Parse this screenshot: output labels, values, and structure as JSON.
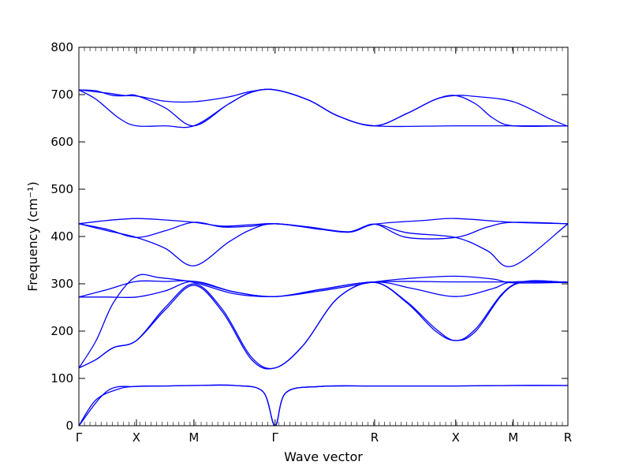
{
  "chart_data": {
    "type": "line",
    "title": "",
    "xlabel": "Wave vector",
    "ylabel": "Frequency (cm⁻¹)",
    "ylim": [
      0,
      800
    ],
    "yticks": [
      0,
      100,
      200,
      300,
      400,
      500,
      600,
      700,
      800
    ],
    "xlim": [
      0,
      8.5
    ],
    "xticks": [
      {
        "pos": 0,
        "label": "Γ"
      },
      {
        "pos": 1,
        "label": "X"
      },
      {
        "pos": 2,
        "label": "M"
      },
      {
        "pos": 3.41,
        "label": "Γ"
      },
      {
        "pos": 5.14,
        "label": "R"
      },
      {
        "pos": 6.55,
        "label": "X"
      },
      {
        "pos": 7.55,
        "label": "M"
      },
      {
        "pos": 8.5,
        "label": "R"
      }
    ],
    "line_color": "#0000ff",
    "grid": false,
    "series": [
      {
        "x": [
          0,
          0.5,
          1,
          1.5,
          2,
          2.7,
          3.2,
          3.41,
          3.6,
          4.2,
          5.14,
          6.55,
          7.55,
          8.5
        ],
        "y": [
          0,
          74,
          83,
          84,
          85,
          85,
          72,
          0,
          70,
          83,
          84,
          84,
          85,
          85
        ]
      },
      {
        "x": [
          0,
          0.3,
          0.7,
          1,
          1.5,
          2,
          2.7,
          3.2,
          3.41,
          3.6,
          4.2,
          5.14,
          6.55,
          7.55,
          8.5
        ],
        "y": [
          0,
          55,
          78,
          83,
          84,
          85,
          85,
          72,
          0,
          70,
          83,
          84,
          84,
          85,
          85
        ]
      },
      {
        "x": [
          0,
          0.3,
          0.6,
          1,
          1.5,
          2,
          2.5,
          3,
          3.41,
          3.9,
          4.5,
          5.14,
          5.7,
          6.2,
          6.55,
          6.9,
          7.55,
          8.5
        ],
        "y": [
          122,
          140,
          165,
          180,
          245,
          297,
          240,
          140,
          122,
          170,
          270,
          303,
          260,
          200,
          180,
          200,
          297,
          303
        ]
      },
      {
        "x": [
          0,
          0.3,
          0.6,
          1,
          1.5,
          2,
          2.5,
          3,
          3.41,
          3.9,
          4.5,
          5.14,
          5.7,
          6.2,
          6.55,
          6.9,
          7.55,
          8.5
        ],
        "y": [
          122,
          140,
          165,
          180,
          250,
          300,
          245,
          145,
          122,
          170,
          270,
          303,
          262,
          205,
          180,
          205,
          298,
          303
        ]
      },
      {
        "x": [
          0,
          0.3,
          0.6,
          1,
          1.4,
          2,
          2.7,
          3.41,
          4.2,
          5.14,
          5.8,
          6.55,
          7.2,
          7.55,
          8.5
        ],
        "y": [
          122,
          180,
          260,
          316,
          313,
          303,
          279,
          273,
          285,
          304,
          312,
          316,
          310,
          302,
          303
        ]
      },
      {
        "x": [
          0,
          0.5,
          1,
          1.5,
          2,
          2.7,
          3.41,
          4.2,
          5.14,
          6.55,
          7.55,
          8.5
        ],
        "y": [
          272,
          272,
          272,
          285,
          305,
          283,
          273,
          288,
          304,
          304,
          304,
          304
        ]
      },
      {
        "x": [
          0,
          0.5,
          1,
          1.5,
          2,
          2.7,
          3.41,
          4.2,
          5.14,
          5.8,
          6.55,
          7.2,
          7.55,
          8.5
        ],
        "y": [
          272,
          288,
          305,
          305,
          305,
          283,
          273,
          288,
          304,
          290,
          273,
          290,
          304,
          304
        ]
      },
      {
        "x": [
          0,
          0.5,
          1,
          1.5,
          2,
          2.6,
          3,
          3.41,
          4.2,
          4.7,
          5.14,
          5.7,
          6.55,
          7.1,
          7.55,
          8.5
        ],
        "y": [
          427,
          412,
          398,
          375,
          338,
          388,
          415,
          427,
          415,
          410,
          426,
          408,
          398,
          370,
          338,
          427
        ]
      },
      {
        "x": [
          0,
          0.5,
          1,
          1.5,
          2,
          2.5,
          3,
          3.41,
          4,
          4.7,
          5.14,
          5.7,
          6.55,
          7.1,
          7.55,
          8.5
        ],
        "y": [
          427,
          415,
          398,
          412,
          430,
          420,
          422,
          427,
          420,
          409,
          426,
          398,
          398,
          420,
          430,
          427
        ]
      },
      {
        "x": [
          0,
          0.5,
          1,
          1.5,
          2,
          2.5,
          3,
          3.41,
          4,
          4.7,
          5.14,
          6,
          6.55,
          7.55,
          8.5
        ],
        "y": [
          427,
          434,
          438,
          435,
          430,
          422,
          425,
          427,
          420,
          410,
          426,
          434,
          438,
          430,
          427
        ]
      },
      {
        "x": [
          0,
          0.3,
          0.6,
          1,
          1.5,
          2,
          2.6,
          3,
          3.41,
          4,
          4.5,
          5.14,
          5.7,
          6.2,
          6.55,
          6.9,
          7.55,
          8.2,
          8.5
        ],
        "y": [
          710,
          708,
          698,
          697,
          686,
          685,
          695,
          707,
          710,
          688,
          655,
          634,
          660,
          690,
          698,
          696,
          685,
          648,
          633
        ]
      },
      {
        "x": [
          0,
          0.3,
          0.7,
          1,
          1.5,
          2,
          2.6,
          3,
          3.41,
          4,
          4.5,
          5.14,
          6.55,
          7.55,
          8.5
        ],
        "y": [
          710,
          690,
          650,
          634,
          634,
          634,
          680,
          705,
          710,
          688,
          655,
          634,
          634,
          634,
          634
        ]
      },
      {
        "x": [
          0,
          0.5,
          0.8,
          1,
          1.5,
          2,
          2.6,
          3,
          3.41,
          4,
          4.5,
          5.14,
          5.7,
          6.2,
          6.55,
          6.9,
          7.2,
          7.55,
          8.5
        ],
        "y": [
          710,
          703,
          698,
          698,
          672,
          634,
          680,
          705,
          710,
          688,
          655,
          634,
          660,
          690,
          698,
          680,
          650,
          634,
          634
        ]
      }
    ]
  }
}
